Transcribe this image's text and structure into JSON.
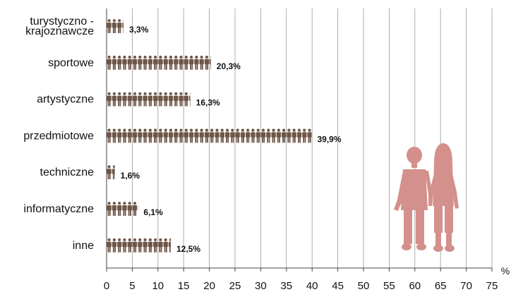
{
  "chart_data": {
    "type": "bar",
    "orientation": "horizontal",
    "mark": "pictogram-person",
    "categories": [
      "turystyczno - krajoznawcze",
      "sportowe",
      "artystyczne",
      "przedmiotowe",
      "techniczne",
      "informatyczne",
      "inne"
    ],
    "category_lines": [
      [
        "turystyczno -",
        "krajoznawcze"
      ],
      [
        "sportowe"
      ],
      [
        "artystyczne"
      ],
      [
        "przedmiotowe"
      ],
      [
        "techniczne"
      ],
      [
        "informatyczne"
      ],
      [
        "inne"
      ]
    ],
    "values": [
      3.3,
      20.3,
      16.3,
      39.9,
      1.6,
      6.1,
      12.5
    ],
    "data_labels": [
      "3,3%",
      "20,3%",
      "16,3%",
      "39,9%",
      "1,6%",
      "6,1%",
      "12,5%"
    ],
    "x_ticks": [
      "0",
      "5",
      "10",
      "15",
      "20",
      "25",
      "30",
      "35",
      "40",
      "45",
      "50",
      "55",
      "60",
      "65",
      "70",
      "75"
    ],
    "x_unit": "%",
    "xlim": [
      0,
      75
    ],
    "grid": true,
    "legend": "none",
    "colors": {
      "icon": "#6e5647",
      "silhouette": "#d4908c",
      "grid": "#9a9a9a"
    }
  }
}
